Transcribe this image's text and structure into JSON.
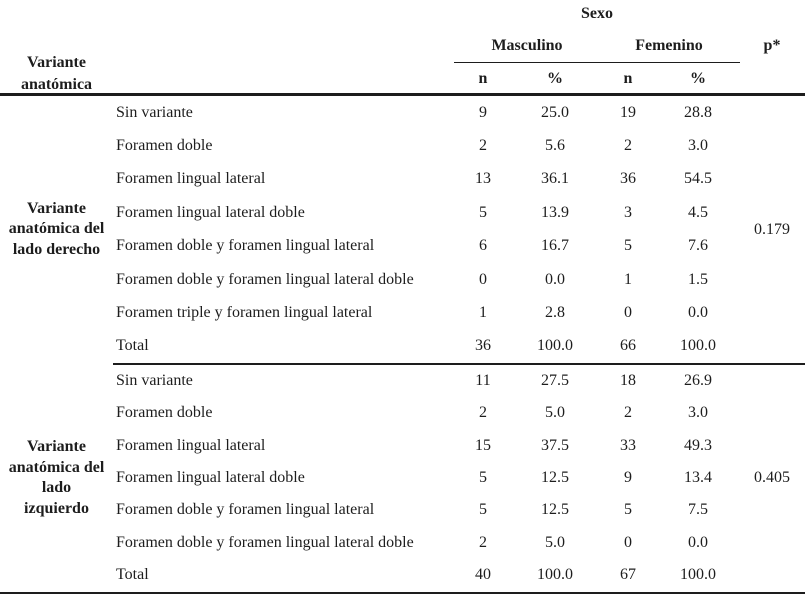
{
  "ink_color": "#1d1d1d",
  "table": {
    "corner_header": "Variante anatómica",
    "group_header": "Sexo",
    "groups": {
      "male": "Masculino",
      "female": "Femenino"
    },
    "p_header": "p*",
    "subcols": [
      "n",
      "%",
      "n",
      "%"
    ],
    "sections": [
      {
        "row_header": "Variante anatómica del lado derecho",
        "p_value": "0.179",
        "rows": [
          {
            "label": "Sin variante",
            "m_n": "9",
            "m_pct": "25.0",
            "f_n": "19",
            "f_pct": "28.8"
          },
          {
            "label": "Foramen doble",
            "m_n": "2",
            "m_pct": "5.6",
            "f_n": "2",
            "f_pct": "3.0"
          },
          {
            "label": "Foramen lingual lateral",
            "m_n": "13",
            "m_pct": "36.1",
            "f_n": "36",
            "f_pct": "54.5"
          },
          {
            "label": "Foramen lingual lateral doble",
            "m_n": "5",
            "m_pct": "13.9",
            "f_n": "3",
            "f_pct": "4.5"
          },
          {
            "label": "Foramen doble y foramen lingual lateral",
            "m_n": "6",
            "m_pct": "16.7",
            "f_n": "5",
            "f_pct": "7.6"
          },
          {
            "label": "Foramen doble y foramen lingual lateral doble",
            "m_n": "0",
            "m_pct": "0.0",
            "f_n": "1",
            "f_pct": "1.5"
          },
          {
            "label": "Foramen triple y foramen lingual lateral",
            "m_n": "1",
            "m_pct": "2.8",
            "f_n": "0",
            "f_pct": "0.0"
          },
          {
            "label": "Total",
            "m_n": "36",
            "m_pct": "100.0",
            "f_n": "66",
            "f_pct": "100.0"
          }
        ]
      },
      {
        "row_header": "Variante anatómica del lado izquierdo",
        "p_value": "0.405",
        "rows": [
          {
            "label": "Sin variante",
            "m_n": "11",
            "m_pct": "27.5",
            "f_n": "18",
            "f_pct": "26.9"
          },
          {
            "label": "Foramen doble",
            "m_n": "2",
            "m_pct": "5.0",
            "f_n": "2",
            "f_pct": "3.0"
          },
          {
            "label": "Foramen lingual lateral",
            "m_n": "15",
            "m_pct": "37.5",
            "f_n": "33",
            "f_pct": "49.3"
          },
          {
            "label": "Foramen lingual lateral doble",
            "m_n": "5",
            "m_pct": "12.5",
            "f_n": "9",
            "f_pct": "13.4"
          },
          {
            "label": "Foramen doble y foramen lingual lateral",
            "m_n": "5",
            "m_pct": "12.5",
            "f_n": "5",
            "f_pct": "7.5"
          },
          {
            "label": "Foramen doble y foramen lingual lateral doble",
            "m_n": "2",
            "m_pct": "5.0",
            "f_n": "0",
            "f_pct": "0.0"
          },
          {
            "label": "Total",
            "m_n": "40",
            "m_pct": "100.0",
            "f_n": "67",
            "f_pct": "100.0"
          }
        ]
      }
    ]
  }
}
